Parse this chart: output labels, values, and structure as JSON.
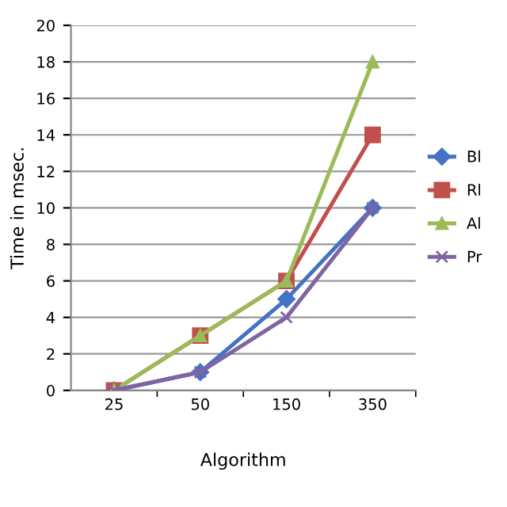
{
  "chart_data": {
    "type": "line",
    "xlabel": "Algorithm",
    "ylabel": "Time in msec.",
    "categories": [
      "25",
      "50",
      "150",
      "350"
    ],
    "series": [
      {
        "name": "Bl",
        "color": "#4472c4",
        "marker": "diamond",
        "values": [
          0,
          1,
          5,
          10
        ]
      },
      {
        "name": "Rl",
        "color": "#c0504d",
        "marker": "square",
        "values": [
          0,
          3,
          6,
          14
        ]
      },
      {
        "name": "Al",
        "color": "#9bbb59",
        "marker": "triangle",
        "values": [
          0,
          3,
          6,
          18
        ]
      },
      {
        "name": "Pr",
        "color": "#8064a2",
        "marker": "cross",
        "values": [
          0,
          1,
          4,
          10
        ]
      }
    ],
    "ylim": [
      0,
      20
    ],
    "yticks": [
      0,
      2,
      4,
      6,
      8,
      10,
      12,
      14,
      16,
      18,
      20
    ],
    "grid": "y",
    "legend": "right",
    "line_style": "solid"
  }
}
